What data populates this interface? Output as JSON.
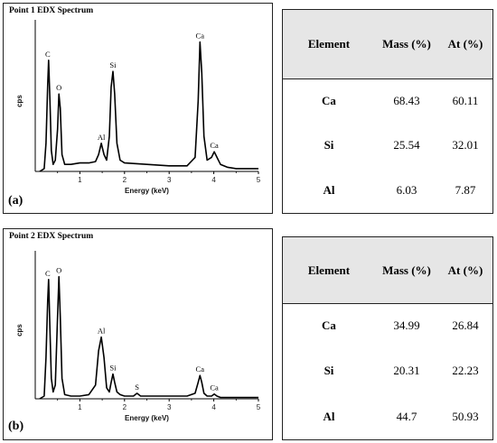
{
  "chart_data": [
    {
      "type": "line",
      "title": "Point 1 EDX Spectrum",
      "panel_label": "(a)",
      "xlabel": "Energy (keV)",
      "ylabel": "cps",
      "xlim": [
        0,
        5
      ],
      "ylim": [
        0,
        1
      ],
      "x_ticks": [
        "1",
        "2",
        "3",
        "4",
        "5"
      ],
      "grid": false,
      "series": [
        {
          "x": [
            0.1,
            0.2,
            0.24,
            0.28,
            0.3,
            0.33,
            0.36,
            0.4,
            0.45,
            0.5,
            0.53,
            0.56,
            0.6,
            0.66,
            0.8,
            1.0,
            1.2,
            1.35,
            1.42,
            1.48,
            1.54,
            1.6,
            1.66,
            1.7,
            1.74,
            1.78,
            1.83,
            1.9,
            2.0,
            2.5,
            3.0,
            3.4,
            3.58,
            3.65,
            3.69,
            3.73,
            3.78,
            3.85,
            3.95,
            4.01,
            4.07,
            4.15,
            4.3,
            4.5,
            5.0
          ],
          "y": [
            0.0,
            0.02,
            0.2,
            0.62,
            0.79,
            0.5,
            0.15,
            0.05,
            0.08,
            0.3,
            0.55,
            0.45,
            0.12,
            0.05,
            0.05,
            0.06,
            0.06,
            0.07,
            0.12,
            0.2,
            0.12,
            0.08,
            0.25,
            0.6,
            0.71,
            0.55,
            0.2,
            0.08,
            0.06,
            0.05,
            0.04,
            0.04,
            0.1,
            0.5,
            0.92,
            0.7,
            0.25,
            0.08,
            0.1,
            0.14,
            0.1,
            0.05,
            0.03,
            0.02,
            0.02
          ]
        }
      ],
      "peak_labels": [
        {
          "text": "C",
          "x": 0.28,
          "y": 0.79
        },
        {
          "text": "O",
          "x": 0.53,
          "y": 0.55
        },
        {
          "text": "Al",
          "x": 1.48,
          "y": 0.2
        },
        {
          "text": "Si",
          "x": 1.74,
          "y": 0.71
        },
        {
          "text": "Ca",
          "x": 3.69,
          "y": 0.92
        },
        {
          "text": "Ca",
          "x": 4.01,
          "y": 0.14
        }
      ]
    },
    {
      "type": "line",
      "title": "Point 2 EDX Spectrum",
      "panel_label": "(b)",
      "xlabel": "Energy (keV)",
      "ylabel": "cps",
      "xlim": [
        0,
        5
      ],
      "ylim": [
        0,
        1
      ],
      "x_ticks": [
        "1",
        "2",
        "3",
        "4",
        "5"
      ],
      "grid": false,
      "series": [
        {
          "x": [
            0.1,
            0.2,
            0.24,
            0.28,
            0.3,
            0.33,
            0.36,
            0.4,
            0.45,
            0.5,
            0.53,
            0.56,
            0.6,
            0.66,
            0.8,
            1.0,
            1.2,
            1.35,
            1.42,
            1.48,
            1.54,
            1.6,
            1.66,
            1.7,
            1.74,
            1.78,
            1.83,
            1.9,
            2.0,
            2.2,
            2.28,
            2.36,
            2.5,
            3.0,
            3.4,
            3.58,
            3.65,
            3.69,
            3.73,
            3.78,
            3.85,
            3.95,
            4.01,
            4.07,
            4.15,
            4.3,
            4.5,
            5.0
          ],
          "y": [
            0.0,
            0.02,
            0.3,
            0.72,
            0.87,
            0.5,
            0.15,
            0.05,
            0.1,
            0.6,
            0.89,
            0.6,
            0.15,
            0.03,
            0.02,
            0.02,
            0.03,
            0.1,
            0.35,
            0.45,
            0.3,
            0.08,
            0.05,
            0.12,
            0.18,
            0.12,
            0.05,
            0.03,
            0.02,
            0.02,
            0.04,
            0.02,
            0.02,
            0.02,
            0.02,
            0.04,
            0.12,
            0.17,
            0.12,
            0.04,
            0.02,
            0.02,
            0.035,
            0.02,
            0.01,
            0.01,
            0.01,
            0.01
          ]
        }
      ],
      "peak_labels": [
        {
          "text": "C",
          "x": 0.28,
          "y": 0.87
        },
        {
          "text": "O",
          "x": 0.53,
          "y": 0.89
        },
        {
          "text": "Al",
          "x": 1.48,
          "y": 0.45
        },
        {
          "text": "Si",
          "x": 1.74,
          "y": 0.18
        },
        {
          "text": "S",
          "x": 2.28,
          "y": 0.04
        },
        {
          "text": "Ca",
          "x": 3.69,
          "y": 0.17
        },
        {
          "text": "Ca",
          "x": 4.01,
          "y": 0.035
        }
      ]
    }
  ],
  "tables": [
    {
      "headers": [
        "Element",
        "Mass (%)",
        "At (%)"
      ],
      "rows": [
        [
          "Ca",
          "68.43",
          "60.11"
        ],
        [
          "Si",
          "25.54",
          "32.01"
        ],
        [
          "Al",
          "6.03",
          "7.87"
        ]
      ]
    },
    {
      "headers": [
        "Element",
        "Mass (%)",
        "At (%)"
      ],
      "rows": [
        [
          "Ca",
          "34.99",
          "26.84"
        ],
        [
          "Si",
          "20.31",
          "22.23"
        ],
        [
          "Al",
          "44.7",
          "50.93"
        ]
      ]
    }
  ]
}
